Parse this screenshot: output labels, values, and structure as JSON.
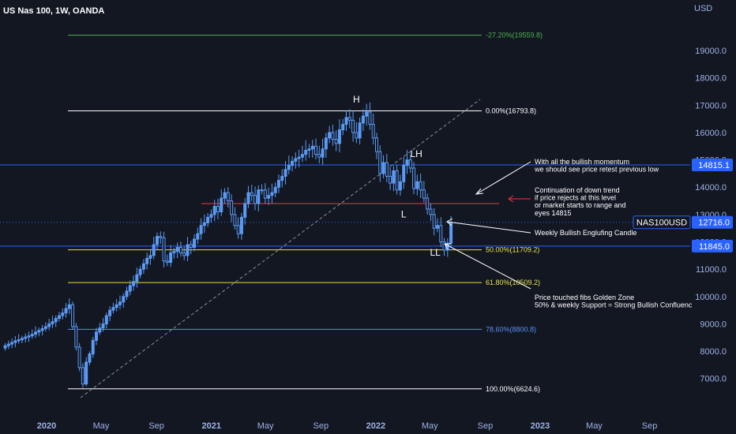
{
  "title": "US Nas 100, 1W, OANDA",
  "currency": "USD",
  "chart_data": {
    "type": "candlestick",
    "symbol": "NAS100USD",
    "timeframe": "1W",
    "ylim": [
      6300,
      20450
    ],
    "y_ticks": [
      {
        "value": 19000,
        "label": "19000.0"
      },
      {
        "value": 18000,
        "label": "18000.0"
      },
      {
        "value": 17000,
        "label": "17000.0"
      },
      {
        "value": 16000,
        "label": "16000.0"
      },
      {
        "value": 15000,
        "label": "15000.0"
      },
      {
        "value": 14000,
        "label": "14000.0"
      },
      {
        "value": 13000,
        "label": "13000.0"
      },
      {
        "value": 12000,
        "label": "12000.0"
      },
      {
        "value": 11000,
        "label": "11000.0"
      },
      {
        "value": 10000,
        "label": "10000.0"
      },
      {
        "value": 9000,
        "label": "9000.0"
      },
      {
        "value": 8000,
        "label": "8000.0"
      },
      {
        "value": 7000,
        "label": "7000.0"
      }
    ],
    "x_ticks": [
      {
        "date": "2020-01-01",
        "label": "2020",
        "bold": true
      },
      {
        "date": "2020-05-01",
        "label": "May"
      },
      {
        "date": "2020-09-01",
        "label": "Sep"
      },
      {
        "date": "2021-01-01",
        "label": "2021",
        "bold": true
      },
      {
        "date": "2021-05-01",
        "label": "May"
      },
      {
        "date": "2021-09-01",
        "label": "Sep"
      },
      {
        "date": "2022-01-01",
        "label": "2022",
        "bold": true
      },
      {
        "date": "2022-05-01",
        "label": "May"
      },
      {
        "date": "2022-09-01",
        "label": "Sep"
      },
      {
        "date": "2023-01-01",
        "label": "2023",
        "bold": true
      },
      {
        "date": "2023-05-01",
        "label": "May"
      },
      {
        "date": "2023-09-01",
        "label": "Sep"
      }
    ],
    "closes": [
      8200,
      8260,
      8320,
      8380,
      8420,
      8470,
      8520,
      8560,
      8620,
      8700,
      8760,
      8830,
      8900,
      9000,
      9080,
      9200,
      9300,
      9400,
      9560,
      9700,
      8900,
      8150,
      7400,
      6800,
      7600,
      7900,
      8400,
      8700,
      8850,
      9000,
      9300,
      9500,
      9600,
      9700,
      9800,
      10000,
      10200,
      10400,
      10550,
      10800,
      11000,
      11200,
      11400,
      11500,
      11900,
      12200,
      12150,
      11300,
      11250,
      11600,
      11650,
      11800,
      11600,
      11500,
      11900,
      11800,
      12100,
      12300,
      12600,
      12700,
      12900,
      13000,
      13300,
      13100,
      13600,
      13800,
      13500,
      13000,
      12600,
      12300,
      12900,
      13400,
      13800,
      13700,
      13400,
      13900,
      13900,
      13600,
      13700,
      13800,
      14000,
      14250,
      14400,
      14650,
      14800,
      14950,
      15050,
      15100,
      15200,
      15350,
      15400,
      15500,
      15200,
      15100,
      15400,
      15800,
      16000,
      15750,
      15600,
      16100,
      16300,
      16550,
      16450,
      16000,
      15800,
      16350,
      16600,
      16750,
      16300,
      15800,
      15300,
      14500,
      14900,
      14400,
      14150,
      14600,
      13900,
      14200,
      14800,
      15000,
      14700,
      13950,
      14200,
      13900,
      13600,
      13200,
      13000,
      12500,
      12600,
      12000,
      11700,
      11950,
      12716
    ],
    "candle_x_range": {
      "first": "2019-10-01",
      "last": "2022-06-17"
    },
    "current_price": {
      "label": "NAS100USD",
      "value": "12716.0",
      "price": 12716
    },
    "price_lines": [
      {
        "value": 14815.1,
        "label": "14815.1",
        "color": "#2962ff"
      },
      {
        "value": 11845.0,
        "label": "11845.0",
        "color": "#2962ff"
      },
      {
        "value": 13400,
        "label": "",
        "color": "#f23645"
      }
    ],
    "fib_levels": [
      {
        "label": "-27.20%(19559.8)",
        "value": 19559.8,
        "color": "#4caf50"
      },
      {
        "label": "0.00%(16793.8)",
        "value": 16793.8,
        "color": "#ffffff"
      },
      {
        "label": "50.00%(11709.2)",
        "value": 11709.2,
        "color": "#e8e24a"
      },
      {
        "label": "61.80%(10509.2)",
        "value": 10509.2,
        "color": "#e8e24a"
      },
      {
        "label": "78.60%(8800.8)",
        "value": 8800.8,
        "color": "#5b8ef7"
      },
      {
        "label": "100.00%(6624.6)",
        "value": 6624.6,
        "color": "#ffffff"
      }
    ],
    "wave_labels": [
      {
        "text": "H",
        "date": "2021-11-19",
        "price": 17100
      },
      {
        "text": "LH",
        "date": "2022-04-01",
        "price": 15100
      },
      {
        "text": "L",
        "date": "2022-03-04",
        "price": 12900
      },
      {
        "text": "LL",
        "date": "2022-05-13",
        "price": 11490
      }
    ],
    "annotations": [
      {
        "lines": [
          "With all the bullish momentum",
          "we should see price retest previous low"
        ]
      },
      {
        "lines": [
          "Continuation of down trend",
          "if price rejects at this level",
          "or market starts to range and",
          "eyes 14815"
        ]
      },
      {
        "lines": [
          "Weekly Bullish Englufing Candle"
        ]
      },
      {
        "lines": [
          "Price touched fibs Golden Zone",
          "50%  & weekly Support = Strong Bullish Confluenc"
        ]
      }
    ]
  }
}
